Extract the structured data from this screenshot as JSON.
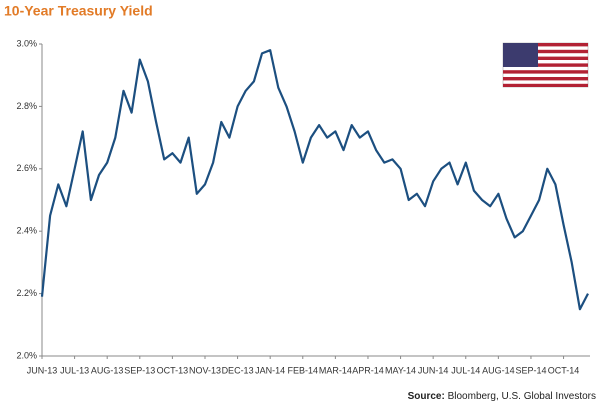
{
  "chart_data": {
    "type": "line",
    "title": "10-Year Treasury Yield",
    "source_label": "Source:",
    "source": "Bloomberg, U.S. Global Investors",
    "categories": [
      "JUN-13",
      null,
      null,
      null,
      "JUL-13",
      null,
      null,
      null,
      "AUG-13",
      null,
      null,
      null,
      "SEP-13",
      null,
      null,
      null,
      "OCT-13",
      null,
      null,
      null,
      "NOV-13",
      null,
      null,
      null,
      "DEC-13",
      null,
      null,
      null,
      "JAN-14",
      null,
      null,
      null,
      "FEB-14",
      null,
      null,
      null,
      "MAR-14",
      null,
      null,
      null,
      "APR-14",
      null,
      null,
      null,
      "MAY-14",
      null,
      null,
      null,
      "JUN-14",
      null,
      null,
      null,
      "JUL-14",
      null,
      null,
      null,
      "AUG-14",
      null,
      null,
      null,
      "SEP-14",
      null,
      null,
      null,
      "OCT-14",
      null,
      null,
      null
    ],
    "series": [
      {
        "name": "10-Year Treasury Yield",
        "color": "#1c4f80",
        "values": [
          2.19,
          2.45,
          2.55,
          2.48,
          2.6,
          2.72,
          2.5,
          2.58,
          2.62,
          2.7,
          2.85,
          2.78,
          2.95,
          2.88,
          2.75,
          2.63,
          2.65,
          2.62,
          2.7,
          2.52,
          2.55,
          2.62,
          2.75,
          2.7,
          2.8,
          2.85,
          2.88,
          2.97,
          2.98,
          2.86,
          2.8,
          2.72,
          2.62,
          2.7,
          2.74,
          2.7,
          2.72,
          2.66,
          2.74,
          2.7,
          2.72,
          2.66,
          2.62,
          2.63,
          2.6,
          2.5,
          2.52,
          2.48,
          2.56,
          2.6,
          2.62,
          2.55,
          2.62,
          2.53,
          2.5,
          2.48,
          2.52,
          2.44,
          2.38,
          2.4,
          2.45,
          2.5,
          2.6,
          2.55,
          2.42,
          2.3,
          2.15,
          2.2
        ]
      }
    ],
    "ylim": [
      2.0,
      3.0
    ],
    "yticks": [
      {
        "value": 2.0,
        "label": "2.0%"
      },
      {
        "value": 2.2,
        "label": "2.2%"
      },
      {
        "value": 2.4,
        "label": "2.4%"
      },
      {
        "value": 2.6,
        "label": "2.6%"
      },
      {
        "value": 2.8,
        "label": "2.8%"
      },
      {
        "value": 3.0,
        "label": "3.0%"
      }
    ],
    "grid": false
  }
}
